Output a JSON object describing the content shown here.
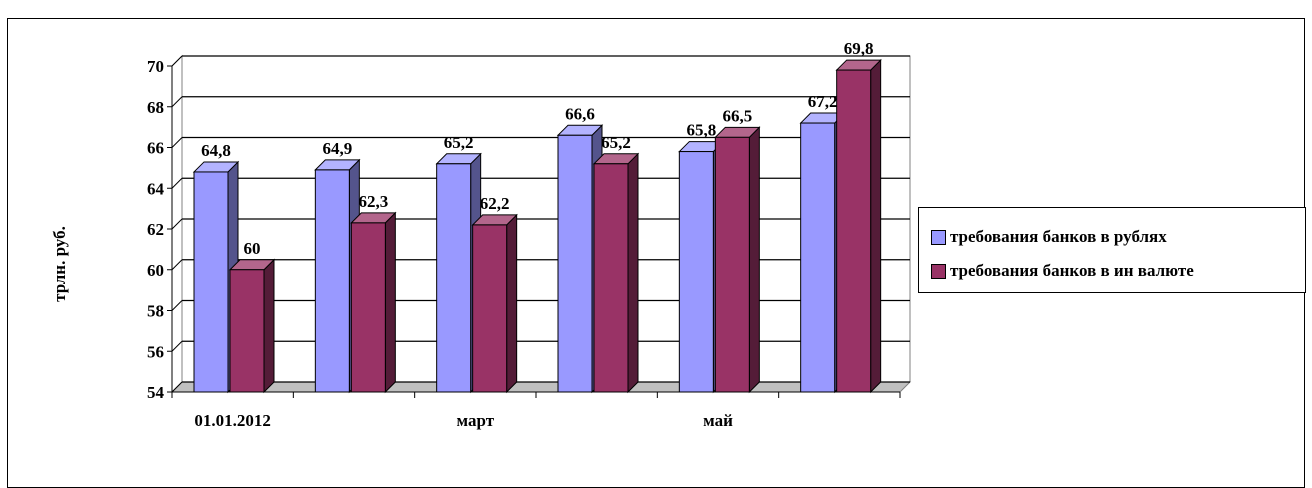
{
  "colors": {
    "series1": "#9999ff",
    "series2": "#993366"
  },
  "chart_data": {
    "type": "bar",
    "categories": [
      "01.01.2012",
      "",
      "март",
      "",
      "май",
      ""
    ],
    "series": [
      {
        "name": "требования банков в рублях",
        "values": [
          64.8,
          64.9,
          65.2,
          66.6,
          65.8,
          67.2
        ]
      },
      {
        "name": "требования банков в ин валюте",
        "values": [
          60,
          62.3,
          62.2,
          65.2,
          66.5,
          69.8
        ]
      }
    ],
    "data_labels": [
      [
        "64,8",
        "64,9",
        "65,2",
        "66,6",
        "65,8",
        "67,2"
      ],
      [
        "60",
        "62,3",
        "62,2",
        "65,2",
        "66,5",
        "69,8"
      ]
    ],
    "ylabel": "трлн. руб.",
    "ylim": [
      54,
      70
    ],
    "yticks": [
      54,
      56,
      58,
      60,
      62,
      64,
      66,
      68,
      70
    ],
    "grid": true,
    "legend_position": "right",
    "style": "3d-clustered-column"
  }
}
